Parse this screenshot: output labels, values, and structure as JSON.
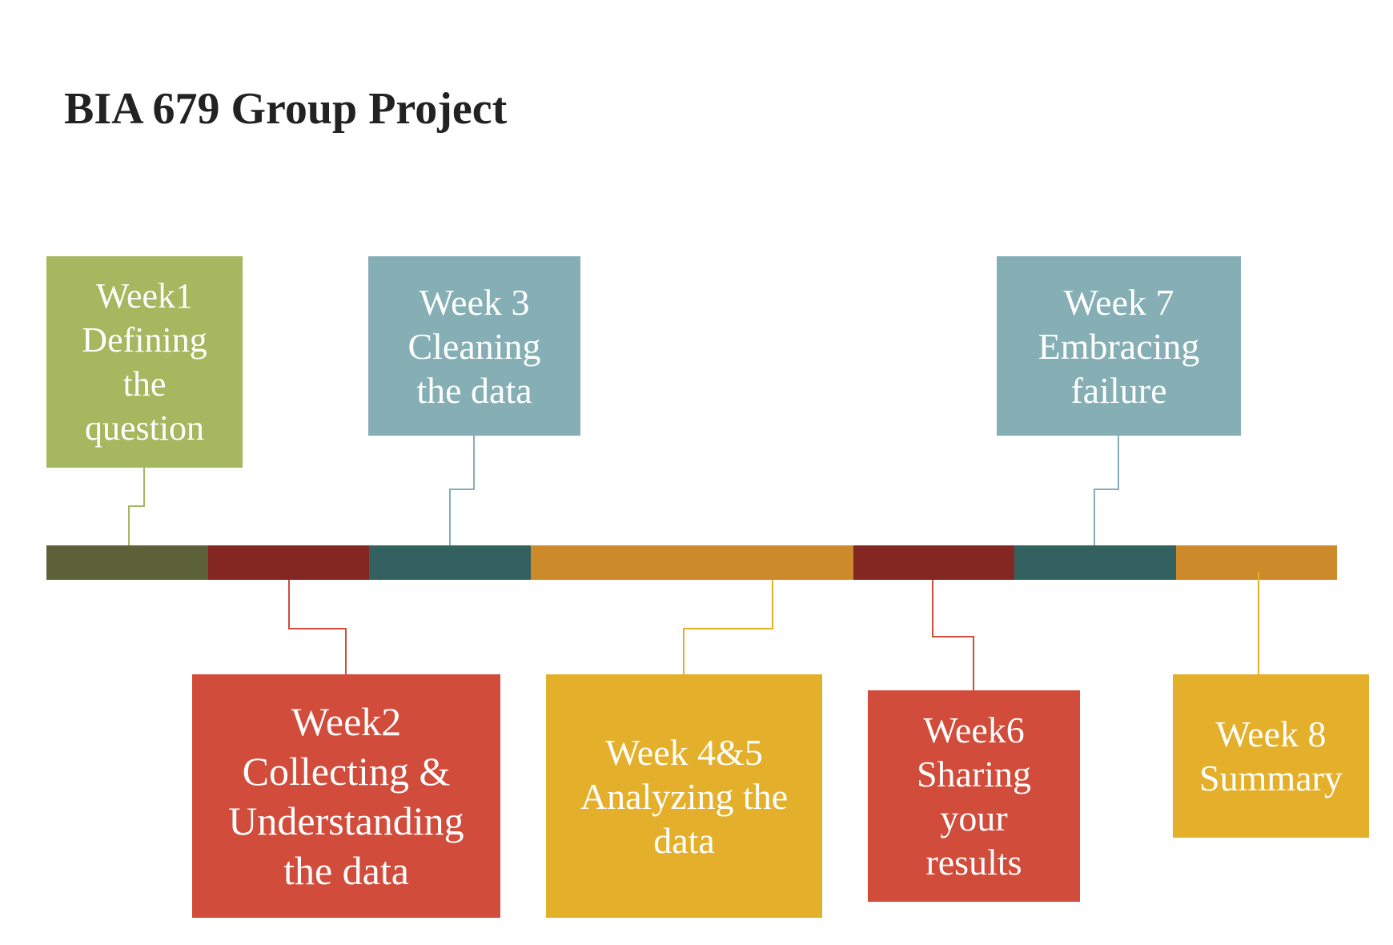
{
  "title": "BIA 679 Group Project",
  "colors": {
    "olive": "#5c6138",
    "maroon": "#842622",
    "teal_dark": "#336160",
    "orange": "#cc8a2a",
    "green_box": "#a5b75f",
    "blue_box": "#85afb4",
    "red_box": "#d14c3b",
    "gold_box": "#e4b02c"
  },
  "timeline": {
    "segments": [
      {
        "color": "#5c6138",
        "span": 1
      },
      {
        "color": "#842622",
        "span": 1
      },
      {
        "color": "#336160",
        "span": 1
      },
      {
        "color": "#cc8a2a",
        "span": 2
      },
      {
        "color": "#842622",
        "span": 1
      },
      {
        "color": "#336160",
        "span": 1
      },
      {
        "color": "#cc8a2a",
        "span": 1
      }
    ]
  },
  "milestones": {
    "week1": {
      "lines": [
        "Week1",
        "Defining",
        "the",
        "question"
      ],
      "color": "#a5b75f",
      "connector_color": "#a5b75f"
    },
    "week2": {
      "lines": [
        "Week2",
        "Collecting &",
        "Understanding",
        "the data"
      ],
      "color": "#d14c3b",
      "connector_color": "#d14c3b"
    },
    "week3": {
      "lines": [
        "Week  3",
        "Cleaning",
        "the data"
      ],
      "color": "#85afb4",
      "connector_color": "#85afb4"
    },
    "week45": {
      "lines": [
        "Week  4&5",
        "Analyzing the",
        "data"
      ],
      "color": "#e4b02c",
      "connector_color": "#e4b02c"
    },
    "week6": {
      "lines": [
        "Week6",
        "Sharing",
        "your",
        "results"
      ],
      "color": "#d14c3b",
      "connector_color": "#d14c3b"
    },
    "week7": {
      "lines": [
        "Week  7",
        "Embracing",
        "failure"
      ],
      "color": "#85afb4",
      "connector_color": "#85afb4"
    },
    "week8": {
      "lines": [
        "Week  8",
        "Summary"
      ],
      "color": "#e4b02c",
      "connector_color": "#e4b02c"
    }
  }
}
